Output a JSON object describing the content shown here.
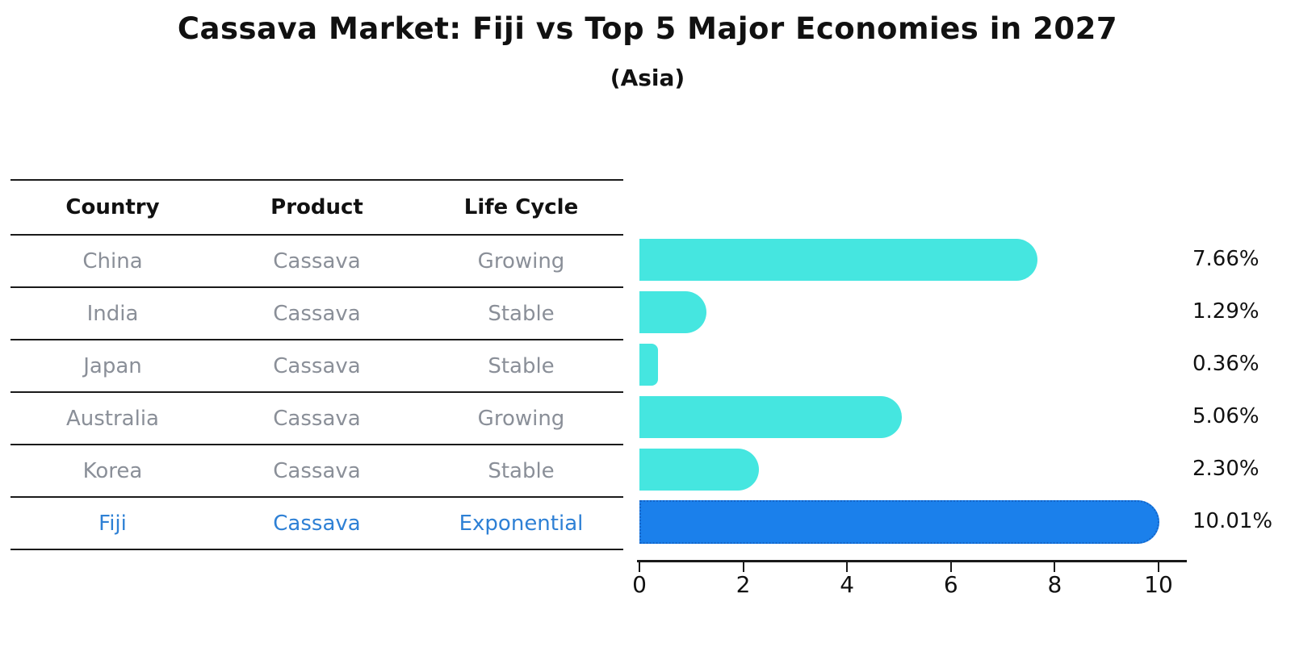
{
  "title": "Cassava Market: Fiji vs Top 5 Major Economies in 2027",
  "subtitle": "(Asia)",
  "table": {
    "headers": [
      "Country",
      "Product",
      "Life Cycle"
    ],
    "rows": [
      {
        "country": "China",
        "product": "Cassava",
        "life_cycle": "Growing",
        "highlight": false
      },
      {
        "country": "India",
        "product": "Cassava",
        "life_cycle": "Stable",
        "highlight": false
      },
      {
        "country": "Japan",
        "product": "Cassava",
        "life_cycle": "Stable",
        "highlight": false
      },
      {
        "country": "Australia",
        "product": "Cassava",
        "life_cycle": "Growing",
        "highlight": false
      },
      {
        "country": "Korea",
        "product": "Cassava",
        "life_cycle": "Stable",
        "highlight": false
      },
      {
        "country": "Fiji",
        "product": "Cassava",
        "life_cycle": "Exponential",
        "highlight": true
      }
    ]
  },
  "chart_data": {
    "type": "bar",
    "orientation": "horizontal",
    "title": "Cassava Market: Fiji vs Top 5 Major Economies in 2027",
    "subtitle": "(Asia)",
    "categories": [
      "China",
      "India",
      "Japan",
      "Australia",
      "Korea",
      "Fiji"
    ],
    "values": [
      7.66,
      1.29,
      0.36,
      5.06,
      2.3,
      10.01
    ],
    "value_labels": [
      "7.66%",
      "1.29%",
      "0.36%",
      "5.06%",
      "2.30%",
      "10.01%"
    ],
    "xlim": [
      0,
      10.55
    ],
    "xticks": [
      0,
      2,
      4,
      6,
      8,
      10
    ],
    "grid": false,
    "legend": false,
    "bar_color": "#45e6e0",
    "highlight_color": "#1b80eb",
    "highlight_border_color": "#1465c8",
    "highlight_index": 5
  },
  "colors": {
    "header_text": "#111111",
    "cell_text": "#8a8f98",
    "highlight_text": "#2e80d5",
    "rule_line": "#1a1a1a"
  }
}
